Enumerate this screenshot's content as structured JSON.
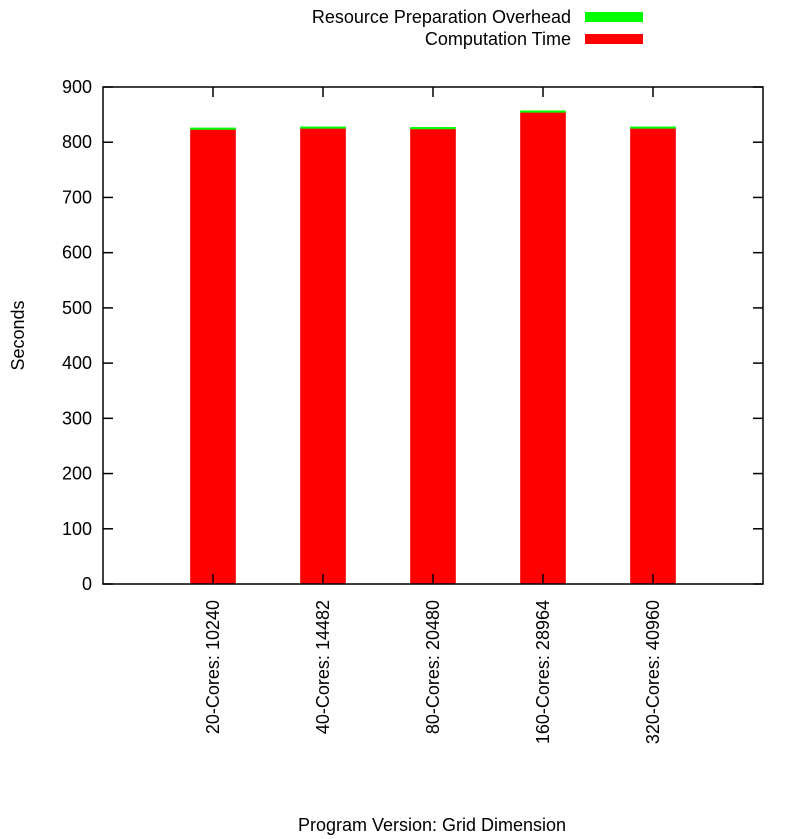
{
  "chart_data": {
    "type": "bar",
    "stacked": true,
    "categories": [
      "20-Cores: 10240",
      "40-Cores: 14482",
      "80-Cores: 20480",
      "160-Cores: 28964",
      "320-Cores: 40960"
    ],
    "series": [
      {
        "name": "Computation Time",
        "color": "#ff0000",
        "values": [
          823,
          825,
          824,
          854,
          825
        ]
      },
      {
        "name": "Resource Preparation Overhead",
        "color": "#00ff00",
        "values": [
          3,
          3,
          3,
          3,
          3
        ]
      }
    ],
    "legend": {
      "placement": "top-right",
      "entries": [
        "Resource Preparation Overhead",
        "Computation Time"
      ]
    },
    "xlabel": "Program Version: Grid Dimension",
    "ylabel": "Seconds",
    "ylim": [
      0,
      900
    ],
    "yticks": [
      "0",
      "100",
      "200",
      "300",
      "400",
      "500",
      "600",
      "700",
      "800",
      "900"
    ],
    "grid": false
  }
}
